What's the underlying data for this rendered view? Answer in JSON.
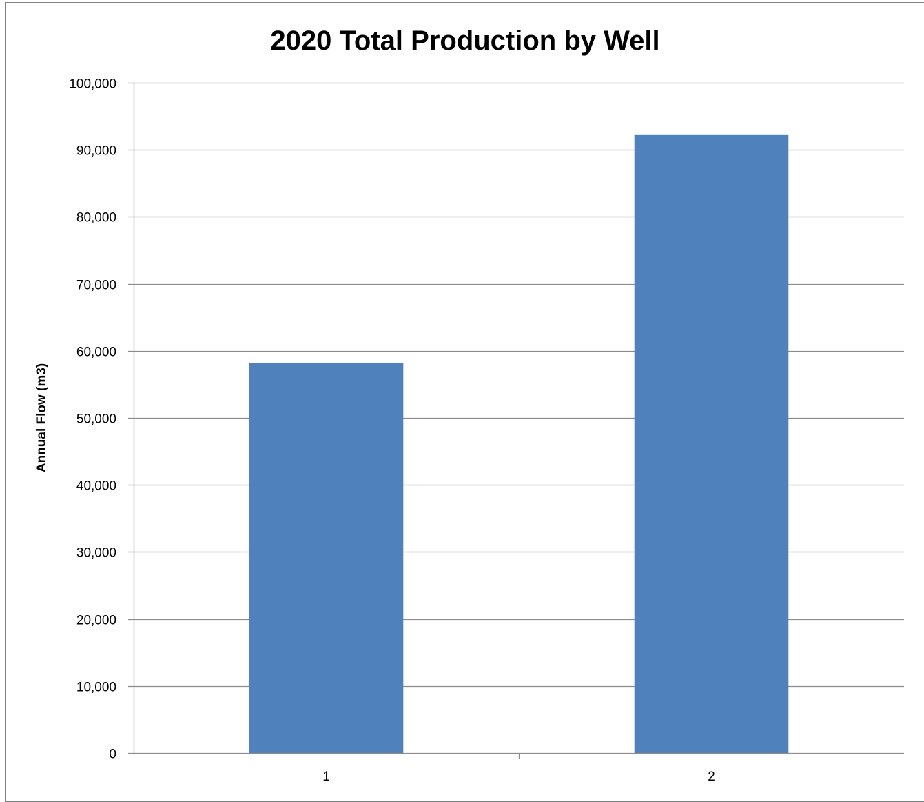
{
  "chart_data": {
    "type": "bar",
    "title": "2020 Total Production by Well",
    "xlabel": "",
    "ylabel": "Annual Flow (m3)",
    "categories": [
      "1",
      "2"
    ],
    "values": [
      58200,
      92200
    ],
    "ylim": [
      0,
      100000
    ],
    "ytick_step": 10000,
    "ytick_labels": [
      "0",
      "10,000",
      "20,000",
      "30,000",
      "40,000",
      "50,000",
      "60,000",
      "70,000",
      "80,000",
      "90,000",
      "100,000"
    ],
    "grid": true,
    "legend": "none",
    "colors": {
      "bar": "#4F81BD",
      "grid": "#8c8c8c",
      "axis": "#8c8c8c",
      "frame": "#7f7f7f"
    }
  }
}
